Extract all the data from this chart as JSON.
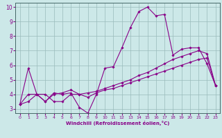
{
  "xlabel": "Windchill (Refroidissement éolien,°C)",
  "xlim": [
    -0.5,
    23.5
  ],
  "ylim": [
    2.7,
    10.3
  ],
  "yticks": [
    3,
    4,
    5,
    6,
    7,
    8,
    9,
    10
  ],
  "xticks": [
    0,
    1,
    2,
    3,
    4,
    5,
    6,
    7,
    8,
    9,
    10,
    11,
    12,
    13,
    14,
    15,
    16,
    17,
    18,
    19,
    20,
    21,
    22,
    23
  ],
  "bg_color": "#cce8e8",
  "line_color": "#880088",
  "grid_color": "#99bbbb",
  "line1_x": [
    0,
    1,
    2,
    3,
    4,
    5,
    6,
    7,
    8,
    9,
    10,
    11,
    12,
    13,
    14,
    15,
    16,
    17,
    18,
    19,
    20,
    21,
    22,
    23
  ],
  "line1_y": [
    3.3,
    5.8,
    4.0,
    3.5,
    4.1,
    4.0,
    4.1,
    3.1,
    2.7,
    4.0,
    5.8,
    5.9,
    7.2,
    8.6,
    9.7,
    10.0,
    9.4,
    9.5,
    6.7,
    7.1,
    7.2,
    7.2,
    6.1,
    4.6
  ],
  "line2_x": [
    0,
    1,
    2,
    3,
    4,
    5,
    6,
    7,
    8,
    9,
    10,
    11,
    12,
    13,
    14,
    15,
    16,
    17,
    18,
    19,
    20,
    21,
    22,
    23
  ],
  "line2_y": [
    3.3,
    4.0,
    4.0,
    3.5,
    4.0,
    4.1,
    4.3,
    4.0,
    4.1,
    4.2,
    4.4,
    4.6,
    4.8,
    5.0,
    5.3,
    5.5,
    5.8,
    6.1,
    6.4,
    6.6,
    6.8,
    7.0,
    6.8,
    4.6
  ],
  "line3_x": [
    0,
    1,
    2,
    3,
    4,
    5,
    6,
    7,
    8,
    9,
    10,
    11,
    12,
    13,
    14,
    15,
    16,
    17,
    18,
    19,
    20,
    21,
    22,
    23
  ],
  "line3_y": [
    3.3,
    3.5,
    4.0,
    4.0,
    3.5,
    3.5,
    4.0,
    4.0,
    3.8,
    4.1,
    4.3,
    4.4,
    4.6,
    4.8,
    5.0,
    5.2,
    5.4,
    5.6,
    5.8,
    6.0,
    6.2,
    6.4,
    6.5,
    4.6
  ]
}
